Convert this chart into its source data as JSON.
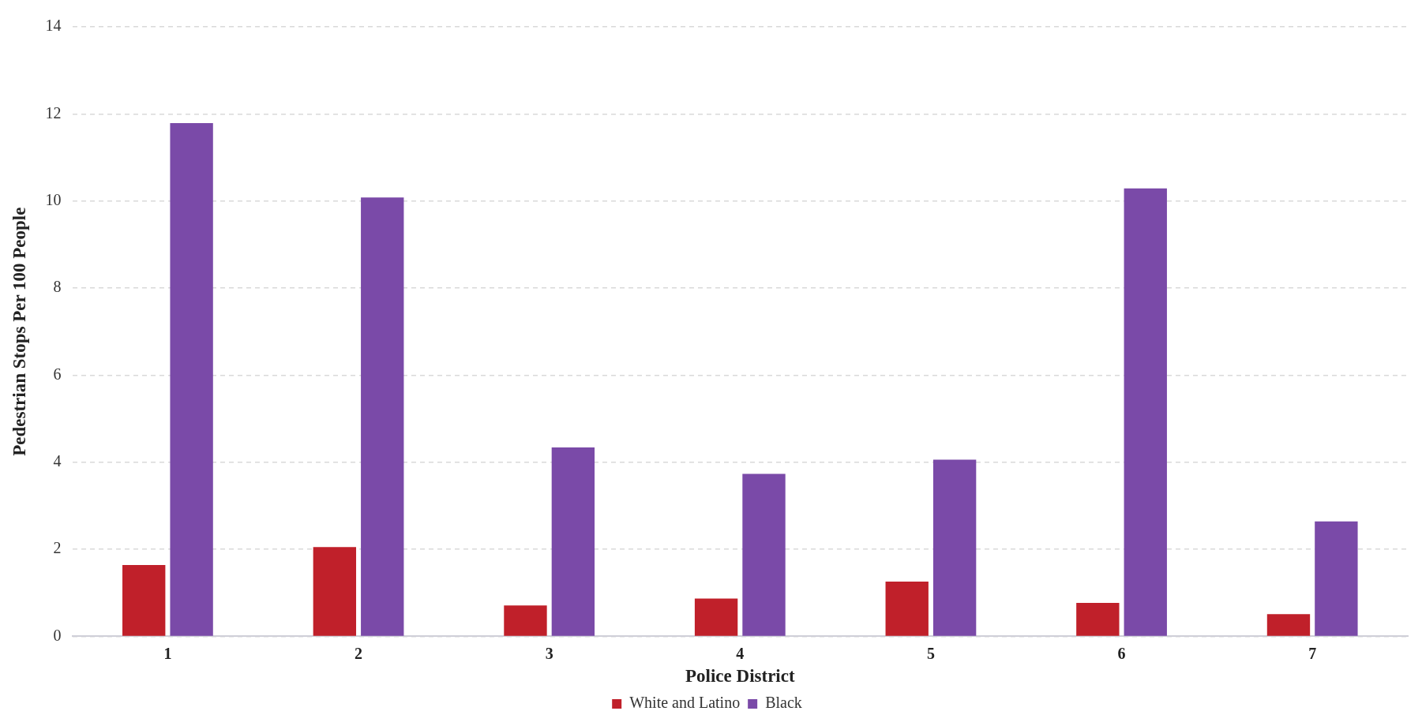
{
  "chart_data": {
    "type": "bar",
    "xlabel": "Police District",
    "ylabel": "Pedestrian Stops Per 100 People",
    "categories": [
      "1",
      "2",
      "3",
      "4",
      "5",
      "6",
      "7"
    ],
    "series": [
      {
        "name": "White and Latino",
        "color": "#c0202a",
        "values": [
          1.64,
          2.05,
          0.71,
          0.87,
          1.26,
          0.77,
          0.51
        ]
      },
      {
        "name": "Black",
        "color": "#7a4aa8",
        "values": [
          11.79,
          10.08,
          4.34,
          3.73,
          4.06,
          10.29,
          2.64
        ]
      }
    ],
    "ylim": [
      0,
      14
    ],
    "yticks": [
      0,
      2,
      4,
      6,
      8,
      10,
      12,
      14
    ],
    "grid": "y",
    "legend": "bottom"
  }
}
